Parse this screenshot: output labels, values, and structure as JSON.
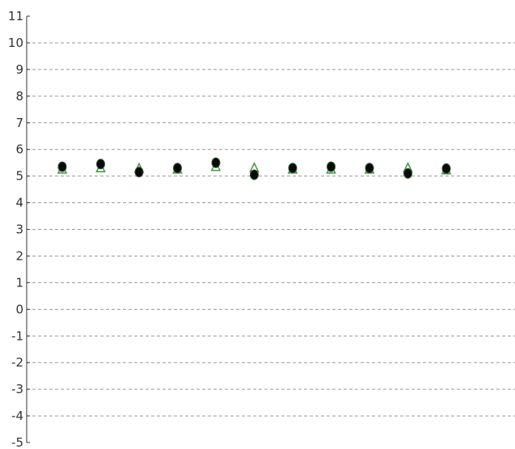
{
  "chart_data": {
    "type": "scatter",
    "title": "",
    "xlabel": "",
    "ylabel": "",
    "ylim": [
      -5,
      11
    ],
    "yticks": [
      11,
      10,
      9,
      8,
      7,
      6,
      5,
      4,
      3,
      2,
      1,
      0,
      -1,
      -2,
      -3,
      -4,
      -5
    ],
    "grid": "horizontal dashed",
    "legend": "none",
    "x": [
      1,
      2,
      3,
      4,
      5,
      6,
      7,
      8,
      9,
      10,
      11
    ],
    "series": [
      {
        "marker": "triangle-open",
        "color": "#3f9a3f",
        "values": [
          5.25,
          5.3,
          5.28,
          5.25,
          5.35,
          5.3,
          5.25,
          5.25,
          5.25,
          5.3,
          5.22
        ]
      },
      {
        "marker": "circle-filled",
        "color": "#0a0a0a",
        "values": [
          5.35,
          5.45,
          5.15,
          5.3,
          5.5,
          5.05,
          5.3,
          5.35,
          5.3,
          5.1,
          5.28
        ]
      }
    ]
  }
}
